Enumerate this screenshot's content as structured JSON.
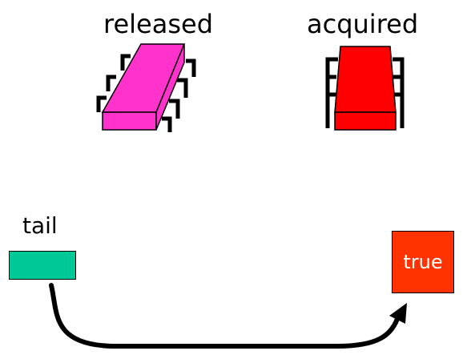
{
  "states": {
    "released_label": "released",
    "acquired_label": "acquired"
  },
  "queue": {
    "tail_label": "tail",
    "node_value": "true"
  },
  "colors": {
    "released_lock": "#ff33cc",
    "acquired_lock": "#ff0000",
    "tail_pointer": "#00c896",
    "node": "#ff3300"
  },
  "icons": {
    "released": "released-lock-chip-icon",
    "acquired": "acquired-lock-chip-icon"
  }
}
